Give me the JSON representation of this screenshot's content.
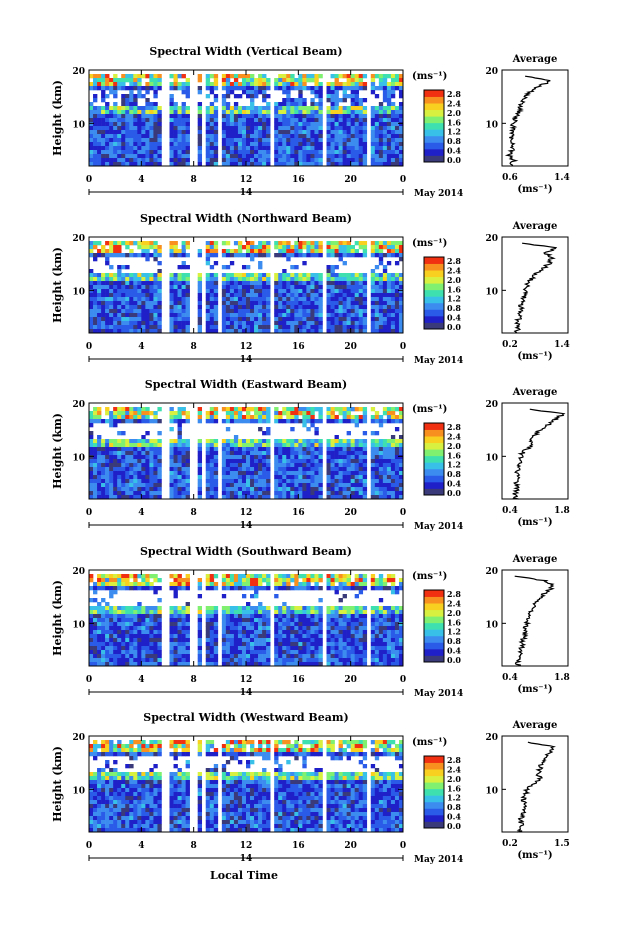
{
  "footer": {
    "xlabel": "Local Time"
  },
  "colorbar": {
    "unit": "(ms⁻¹)",
    "ticks": [
      "0.0",
      "0.4",
      "0.8",
      "1.2",
      "1.6",
      "2.0",
      "2.4",
      "2.8"
    ],
    "colors": [
      "#3a3a7a",
      "#2020c8",
      "#2a5ae8",
      "#3c8cf0",
      "#38c0e8",
      "#3ee0b0",
      "#80f070",
      "#d8f040",
      "#f8d020",
      "#f89020",
      "#f03010"
    ]
  },
  "chart_data": [
    {
      "type": "heatmap",
      "title": "Spectral Width (Vertical Beam)",
      "ylabel": "Height (km)",
      "x_ticks": [
        "0",
        "4",
        "8",
        "12",
        "16",
        "20",
        "0"
      ],
      "x_date_label": "14",
      "month_label": "May 2014",
      "ylim": [
        2,
        20
      ],
      "y_ticks": [
        "10",
        "20"
      ],
      "zlim": [
        0,
        2.8
      ],
      "colorbar_ticks": [
        "0.0",
        "0.4",
        "0.8",
        "1.2",
        "1.6",
        "2.0",
        "2.4",
        "2.8"
      ],
      "colorbar_unit": "(ms⁻¹)",
      "gaps_hours": [
        [
          5.6,
          6.3
        ],
        [
          7.7,
          8.2
        ],
        [
          8.7,
          9.0
        ],
        [
          9.7,
          10.2
        ],
        [
          14.0,
          14.3
        ],
        [
          17.7,
          18.1
        ],
        [
          21.1,
          21.6
        ]
      ],
      "profile": {
        "title": "Average",
        "xlabel": "(ms⁻¹)",
        "xlim": [
          0.6,
          1.4
        ],
        "x_ticks": [
          "0.6",
          "1.4"
        ],
        "y_ticks": [
          "10",
          "20"
        ],
        "height_km": [
          2,
          3,
          4,
          5,
          6,
          7,
          8,
          9,
          10,
          11,
          12,
          13,
          14,
          15,
          16,
          17,
          18,
          19
        ],
        "values": [
          0.7,
          0.74,
          0.68,
          0.72,
          0.75,
          0.7,
          0.72,
          0.73,
          0.74,
          0.76,
          0.8,
          0.82,
          0.85,
          0.88,
          0.95,
          1.05,
          1.2,
          0.85
        ]
      }
    },
    {
      "type": "heatmap",
      "title": "Spectral Width (Northward Beam)",
      "ylabel": "Height (km)",
      "x_ticks": [
        "0",
        "4",
        "8",
        "12",
        "16",
        "20",
        "0"
      ],
      "x_date_label": "14",
      "month_label": "May 2014",
      "ylim": [
        2,
        20
      ],
      "y_ticks": [
        "10",
        "20"
      ],
      "zlim": [
        0,
        2.8
      ],
      "colorbar_ticks": [
        "0.0",
        "0.4",
        "0.8",
        "1.2",
        "1.6",
        "2.0",
        "2.4",
        "2.8"
      ],
      "colorbar_unit": "(ms⁻¹)",
      "gaps_hours": [
        [
          5.6,
          6.3
        ],
        [
          7.7,
          8.2
        ],
        [
          8.7,
          9.0
        ],
        [
          9.7,
          10.2
        ],
        [
          14.0,
          14.3
        ],
        [
          17.7,
          18.1
        ],
        [
          21.1,
          21.6
        ]
      ],
      "profile": {
        "title": "Average",
        "xlabel": "(ms⁻¹)",
        "xlim": [
          0.2,
          1.4
        ],
        "x_ticks": [
          "0.2",
          "1.4"
        ],
        "y_ticks": [
          "10",
          "20"
        ],
        "height_km": [
          2,
          3,
          4,
          5,
          6,
          7,
          8,
          9,
          10,
          11,
          12,
          13,
          14,
          15,
          16,
          17,
          18,
          19
        ],
        "values": [
          0.45,
          0.5,
          0.48,
          0.52,
          0.55,
          0.54,
          0.58,
          0.6,
          0.62,
          0.66,
          0.72,
          0.8,
          0.95,
          1.05,
          1.1,
          1.0,
          1.2,
          0.4
        ]
      }
    },
    {
      "type": "heatmap",
      "title": "Spectral Width (Eastward Beam)",
      "ylabel": "Height (km)",
      "x_ticks": [
        "0",
        "4",
        "8",
        "12",
        "16",
        "20",
        "0"
      ],
      "x_date_label": "14",
      "month_label": "May 2014",
      "ylim": [
        2,
        20
      ],
      "y_ticks": [
        "10",
        "20"
      ],
      "zlim": [
        0,
        2.8
      ],
      "colorbar_ticks": [
        "0.0",
        "0.4",
        "0.8",
        "1.2",
        "1.6",
        "2.0",
        "2.4",
        "2.8"
      ],
      "colorbar_unit": "(ms⁻¹)",
      "gaps_hours": [
        [
          5.6,
          6.3
        ],
        [
          7.7,
          8.2
        ],
        [
          8.7,
          9.0
        ],
        [
          9.7,
          10.2
        ],
        [
          14.0,
          14.3
        ],
        [
          17.7,
          18.1
        ],
        [
          21.1,
          21.6
        ]
      ],
      "profile": {
        "title": "Average",
        "xlabel": "(ms⁻¹)",
        "xlim": [
          0.4,
          1.8
        ],
        "x_ticks": [
          "0.4",
          "1.8"
        ],
        "y_ticks": [
          "10",
          "20"
        ],
        "height_km": [
          2,
          3,
          4,
          5,
          6,
          7,
          8,
          9,
          10,
          11,
          12,
          13,
          14,
          15,
          16,
          17,
          18,
          19
        ],
        "values": [
          0.7,
          0.68,
          0.72,
          0.7,
          0.74,
          0.72,
          0.76,
          0.78,
          0.8,
          0.85,
          1.05,
          1.0,
          1.1,
          1.2,
          1.4,
          1.55,
          1.7,
          0.8
        ]
      }
    },
    {
      "type": "heatmap",
      "title": "Spectral Width (Southward Beam)",
      "ylabel": "Height (km)",
      "x_ticks": [
        "0",
        "4",
        "8",
        "12",
        "16",
        "20",
        "0"
      ],
      "x_date_label": "14",
      "month_label": "May 2014",
      "ylim": [
        2,
        20
      ],
      "y_ticks": [
        "10",
        "20"
      ],
      "zlim": [
        0,
        2.8
      ],
      "colorbar_ticks": [
        "0.0",
        "0.4",
        "0.8",
        "1.2",
        "1.6",
        "2.0",
        "2.4",
        "2.8"
      ],
      "colorbar_unit": "(ms⁻¹)",
      "gaps_hours": [
        [
          5.6,
          6.3
        ],
        [
          7.7,
          8.2
        ],
        [
          8.7,
          9.0
        ],
        [
          9.7,
          10.2
        ],
        [
          14.0,
          14.3
        ],
        [
          17.7,
          18.1
        ],
        [
          21.1,
          21.6
        ]
      ],
      "profile": {
        "title": "Average",
        "xlabel": "(ms⁻¹)",
        "xlim": [
          0.4,
          1.8
        ],
        "x_ticks": [
          "0.4",
          "1.8"
        ],
        "y_ticks": [
          "10",
          "20"
        ],
        "height_km": [
          2,
          3,
          4,
          5,
          6,
          7,
          8,
          9,
          10,
          11,
          12,
          13,
          14,
          15,
          16,
          17,
          18,
          19
        ],
        "values": [
          0.75,
          0.72,
          0.78,
          0.8,
          0.82,
          0.85,
          0.88,
          0.9,
          0.92,
          0.95,
          1.0,
          1.05,
          1.15,
          1.25,
          1.35,
          1.5,
          1.3,
          0.6
        ]
      }
    },
    {
      "type": "heatmap",
      "title": "Spectral Width (Westward Beam)",
      "ylabel": "Height (km)",
      "x_ticks": [
        "0",
        "4",
        "8",
        "12",
        "16",
        "20",
        "0"
      ],
      "x_date_label": "14",
      "month_label": "May 2014",
      "ylim": [
        2,
        20
      ],
      "y_ticks": [
        "10",
        "20"
      ],
      "zlim": [
        0,
        2.8
      ],
      "colorbar_ticks": [
        "0.0",
        "0.4",
        "0.8",
        "1.2",
        "1.6",
        "2.0",
        "2.4",
        "2.8"
      ],
      "colorbar_unit": "(ms⁻¹)",
      "gaps_hours": [
        [
          5.6,
          6.3
        ],
        [
          7.7,
          8.2
        ],
        [
          8.7,
          9.0
        ],
        [
          9.7,
          10.2
        ],
        [
          14.0,
          14.3
        ],
        [
          17.7,
          18.1
        ],
        [
          21.1,
          21.6
        ]
      ],
      "profile": {
        "title": "Average",
        "xlabel": "(ms⁻¹)",
        "xlim": [
          0.2,
          1.5
        ],
        "x_ticks": [
          "0.2",
          "1.5"
        ],
        "y_ticks": [
          "10",
          "20"
        ],
        "height_km": [
          2,
          3,
          4,
          5,
          6,
          7,
          8,
          9,
          10,
          11,
          12,
          13,
          14,
          15,
          16,
          17,
          18,
          19
        ],
        "values": [
          0.55,
          0.58,
          0.56,
          0.6,
          0.62,
          0.64,
          0.62,
          0.66,
          0.7,
          0.8,
          0.95,
          0.9,
          0.95,
          1.0,
          1.05,
          1.15,
          1.2,
          0.6
        ]
      }
    }
  ]
}
